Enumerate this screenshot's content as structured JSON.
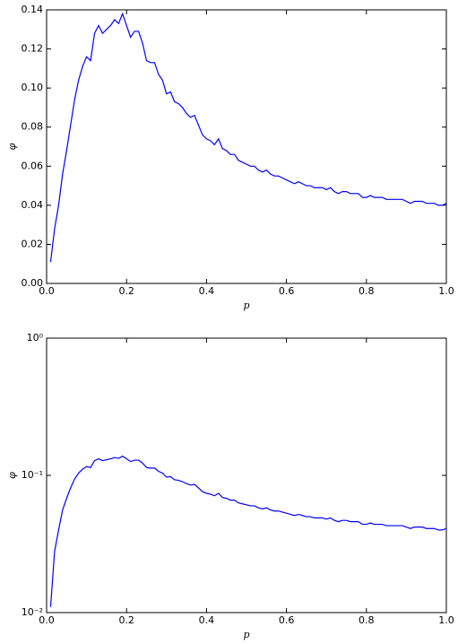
{
  "chart_data": [
    {
      "type": "line",
      "xlabel": "p",
      "ylabel": "φ",
      "color": "#0000ff",
      "x": [
        0.01,
        0.02,
        0.03,
        0.04,
        0.05,
        0.06,
        0.07,
        0.08,
        0.09,
        0.1,
        0.11,
        0.12,
        0.13,
        0.14,
        0.15,
        0.16,
        0.17,
        0.18,
        0.19,
        0.2,
        0.21,
        0.22,
        0.23,
        0.24,
        0.25,
        0.26,
        0.27,
        0.28,
        0.29,
        0.3,
        0.31,
        0.32,
        0.33,
        0.34,
        0.35,
        0.36,
        0.37,
        0.38,
        0.39,
        0.4,
        0.41,
        0.42,
        0.43,
        0.44,
        0.45,
        0.46,
        0.47,
        0.48,
        0.49,
        0.5,
        0.51,
        0.52,
        0.53,
        0.54,
        0.55,
        0.56,
        0.57,
        0.58,
        0.59,
        0.6,
        0.61,
        0.62,
        0.63,
        0.64,
        0.65,
        0.66,
        0.67,
        0.68,
        0.69,
        0.7,
        0.71,
        0.72,
        0.73,
        0.74,
        0.75,
        0.76,
        0.77,
        0.78,
        0.79,
        0.8,
        0.81,
        0.82,
        0.83,
        0.84,
        0.85,
        0.86,
        0.87,
        0.88,
        0.89,
        0.9,
        0.91,
        0.92,
        0.93,
        0.94,
        0.95,
        0.96,
        0.97,
        0.98,
        0.99,
        1.0
      ],
      "values": [
        0.011,
        0.028,
        0.04,
        0.056,
        0.068,
        0.081,
        0.094,
        0.104,
        0.111,
        0.116,
        0.114,
        0.128,
        0.132,
        0.128,
        0.13,
        0.132,
        0.135,
        0.133,
        0.138,
        0.132,
        0.126,
        0.129,
        0.129,
        0.123,
        0.114,
        0.113,
        0.113,
        0.107,
        0.104,
        0.097,
        0.098,
        0.093,
        0.092,
        0.09,
        0.087,
        0.085,
        0.086,
        0.081,
        0.076,
        0.074,
        0.073,
        0.071,
        0.074,
        0.069,
        0.068,
        0.066,
        0.066,
        0.063,
        0.062,
        0.061,
        0.06,
        0.06,
        0.058,
        0.057,
        0.058,
        0.056,
        0.055,
        0.055,
        0.054,
        0.053,
        0.052,
        0.051,
        0.052,
        0.051,
        0.05,
        0.05,
        0.049,
        0.049,
        0.049,
        0.048,
        0.049,
        0.047,
        0.046,
        0.047,
        0.047,
        0.046,
        0.046,
        0.046,
        0.044,
        0.044,
        0.045,
        0.044,
        0.044,
        0.044,
        0.043,
        0.043,
        0.043,
        0.043,
        0.043,
        0.042,
        0.041,
        0.042,
        0.042,
        0.042,
        0.041,
        0.041,
        0.041,
        0.04,
        0.04,
        0.041
      ],
      "xlim": [
        0,
        1
      ],
      "ylim": [
        0,
        0.14
      ],
      "xticks": [
        {
          "value": 0,
          "label": "0.0"
        },
        {
          "value": 0.2,
          "label": "0.2"
        },
        {
          "value": 0.4,
          "label": "0.4"
        },
        {
          "value": 0.6,
          "label": "0.6"
        },
        {
          "value": 0.8,
          "label": "0.8"
        },
        {
          "value": 1,
          "label": "1.0"
        }
      ],
      "yticks": [
        {
          "value": 0,
          "label": "0.00"
        },
        {
          "value": 0.02,
          "label": "0.02"
        },
        {
          "value": 0.04,
          "label": "0.04"
        },
        {
          "value": 0.06,
          "label": "0.06"
        },
        {
          "value": 0.08,
          "label": "0.08"
        },
        {
          "value": 0.1,
          "label": "0.10"
        },
        {
          "value": 0.12,
          "label": "0.12"
        },
        {
          "value": 0.14,
          "label": "0.14"
        }
      ],
      "log_y": false
    },
    {
      "type": "line",
      "xlabel": "p",
      "ylabel": "φ",
      "color": "#0000ff",
      "x": [
        0.01,
        0.02,
        0.03,
        0.04,
        0.05,
        0.06,
        0.07,
        0.08,
        0.09,
        0.1,
        0.11,
        0.12,
        0.13,
        0.14,
        0.15,
        0.16,
        0.17,
        0.18,
        0.19,
        0.2,
        0.21,
        0.22,
        0.23,
        0.24,
        0.25,
        0.26,
        0.27,
        0.28,
        0.29,
        0.3,
        0.31,
        0.32,
        0.33,
        0.34,
        0.35,
        0.36,
        0.37,
        0.38,
        0.39,
        0.4,
        0.41,
        0.42,
        0.43,
        0.44,
        0.45,
        0.46,
        0.47,
        0.48,
        0.49,
        0.5,
        0.51,
        0.52,
        0.53,
        0.54,
        0.55,
        0.56,
        0.57,
        0.58,
        0.59,
        0.6,
        0.61,
        0.62,
        0.63,
        0.64,
        0.65,
        0.66,
        0.67,
        0.68,
        0.69,
        0.7,
        0.71,
        0.72,
        0.73,
        0.74,
        0.75,
        0.76,
        0.77,
        0.78,
        0.79,
        0.8,
        0.81,
        0.82,
        0.83,
        0.84,
        0.85,
        0.86,
        0.87,
        0.88,
        0.89,
        0.9,
        0.91,
        0.92,
        0.93,
        0.94,
        0.95,
        0.96,
        0.97,
        0.98,
        0.99,
        1.0
      ],
      "values": [
        0.011,
        0.028,
        0.04,
        0.056,
        0.068,
        0.081,
        0.094,
        0.104,
        0.111,
        0.116,
        0.114,
        0.128,
        0.132,
        0.128,
        0.13,
        0.132,
        0.135,
        0.133,
        0.138,
        0.132,
        0.126,
        0.129,
        0.129,
        0.123,
        0.114,
        0.113,
        0.113,
        0.107,
        0.104,
        0.097,
        0.098,
        0.093,
        0.092,
        0.09,
        0.087,
        0.085,
        0.086,
        0.081,
        0.076,
        0.074,
        0.073,
        0.071,
        0.074,
        0.069,
        0.068,
        0.066,
        0.066,
        0.063,
        0.062,
        0.061,
        0.06,
        0.06,
        0.058,
        0.057,
        0.058,
        0.056,
        0.055,
        0.055,
        0.054,
        0.053,
        0.052,
        0.051,
        0.052,
        0.051,
        0.05,
        0.05,
        0.049,
        0.049,
        0.049,
        0.048,
        0.049,
        0.047,
        0.046,
        0.047,
        0.047,
        0.046,
        0.046,
        0.046,
        0.044,
        0.044,
        0.045,
        0.044,
        0.044,
        0.044,
        0.043,
        0.043,
        0.043,
        0.043,
        0.043,
        0.042,
        0.041,
        0.042,
        0.042,
        0.042,
        0.041,
        0.041,
        0.041,
        0.04,
        0.04,
        0.041
      ],
      "xlim": [
        0,
        1
      ],
      "ylim": [
        0.01,
        1
      ],
      "xticks": [
        {
          "value": 0,
          "label": "0.0"
        },
        {
          "value": 0.2,
          "label": "0.2"
        },
        {
          "value": 0.4,
          "label": "0.4"
        },
        {
          "value": 0.6,
          "label": "0.6"
        },
        {
          "value": 0.8,
          "label": "0.8"
        },
        {
          "value": 1,
          "label": "1.0"
        }
      ],
      "yticks": [
        {
          "value": 0.01,
          "label": "10⁻²"
        },
        {
          "value": 0.1,
          "label": "10⁻¹"
        },
        {
          "value": 1,
          "label": "10⁰"
        }
      ],
      "log_y": true
    }
  ]
}
